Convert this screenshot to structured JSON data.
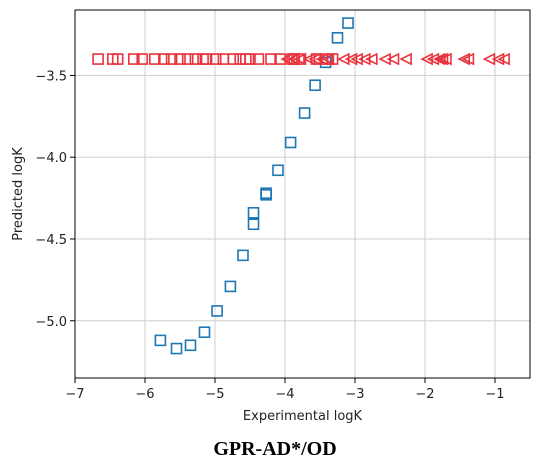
{
  "caption": "GPR-AD*/OD",
  "chart_data": {
    "type": "scatter",
    "xlabel": "Experimental logK",
    "ylabel": "Predicted logK",
    "xlim": [
      -7,
      -0.5
    ],
    "ylim": [
      -5.35,
      -3.1
    ],
    "xticks": [
      -7,
      -6,
      -5,
      -4,
      -3,
      -2,
      -1
    ],
    "yticks": [
      -5.0,
      -4.5,
      -4.0,
      -3.5
    ],
    "xtick_labels": [
      "−7",
      "−6",
      "−5",
      "−4",
      "−3",
      "−2",
      "−1"
    ],
    "ytick_labels": [
      "−5.0",
      "−4.5",
      "−4.0",
      "−3.5"
    ],
    "grid": true,
    "series": [
      {
        "marker": "square",
        "color": "#1f77b4",
        "points": [
          [
            -5.78,
            -5.12
          ],
          [
            -5.55,
            -5.17
          ],
          [
            -5.35,
            -5.15
          ],
          [
            -5.15,
            -5.07
          ],
          [
            -4.97,
            -4.94
          ],
          [
            -4.78,
            -4.79
          ],
          [
            -4.6,
            -4.6
          ],
          [
            -4.45,
            -4.41
          ],
          [
            -4.45,
            -4.34
          ],
          [
            -4.27,
            -4.23
          ],
          [
            -4.27,
            -4.22
          ],
          [
            -4.1,
            -4.08
          ],
          [
            -3.92,
            -3.91
          ],
          [
            -3.72,
            -3.73
          ],
          [
            -3.57,
            -3.56
          ],
          [
            -3.42,
            -3.42
          ],
          [
            -3.25,
            -3.27
          ],
          [
            -3.1,
            -3.18
          ]
        ]
      },
      {
        "marker": "square",
        "color": "#e8323c",
        "points": [
          [
            -6.67,
            -3.4
          ],
          [
            -6.46,
            -3.4
          ],
          [
            -6.39,
            -3.4
          ],
          [
            -6.16,
            -3.4
          ],
          [
            -6.04,
            -3.4
          ],
          [
            -5.86,
            -3.4
          ],
          [
            -5.73,
            -3.4
          ],
          [
            -5.62,
            -3.4
          ],
          [
            -5.5,
            -3.4
          ],
          [
            -5.39,
            -3.4
          ],
          [
            -5.28,
            -3.4
          ],
          [
            -5.17,
            -3.4
          ],
          [
            -5.12,
            -3.4
          ],
          [
            -4.99,
            -3.4
          ],
          [
            -4.88,
            -3.4
          ],
          [
            -4.74,
            -3.4
          ],
          [
            -4.64,
            -3.4
          ],
          [
            -4.56,
            -3.4
          ],
          [
            -4.5,
            -3.4
          ],
          [
            -4.38,
            -3.4
          ],
          [
            -4.2,
            -3.4
          ],
          [
            -4.07,
            -3.4
          ],
          [
            -3.9,
            -3.4
          ],
          [
            -3.87,
            -3.4
          ],
          [
            -3.8,
            -3.4
          ],
          [
            -3.55,
            -3.4
          ],
          [
            -3.4,
            -3.4
          ],
          [
            -3.32,
            -3.4
          ]
        ]
      },
      {
        "marker": "triangle-left",
        "color": "#e8323c",
        "points": [
          [
            -3.97,
            -3.4
          ],
          [
            -3.87,
            -3.4
          ],
          [
            -3.78,
            -3.4
          ],
          [
            -3.65,
            -3.4
          ],
          [
            -3.57,
            -3.4
          ],
          [
            -3.47,
            -3.4
          ],
          [
            -3.38,
            -3.4
          ],
          [
            -3.16,
            -3.4
          ],
          [
            -3.05,
            -3.4
          ],
          [
            -2.97,
            -3.4
          ],
          [
            -2.86,
            -3.4
          ],
          [
            -2.76,
            -3.4
          ],
          [
            -2.57,
            -3.4
          ],
          [
            -2.45,
            -3.4
          ],
          [
            -2.27,
            -3.4
          ],
          [
            -1.97,
            -3.4
          ],
          [
            -1.88,
            -3.4
          ],
          [
            -1.79,
            -3.4
          ],
          [
            -1.75,
            -3.4
          ],
          [
            -1.7,
            -3.4
          ],
          [
            -1.44,
            -3.4
          ],
          [
            -1.38,
            -3.4
          ],
          [
            -1.08,
            -3.4
          ],
          [
            -0.95,
            -3.4
          ],
          [
            -0.87,
            -3.4
          ]
        ]
      }
    ]
  }
}
